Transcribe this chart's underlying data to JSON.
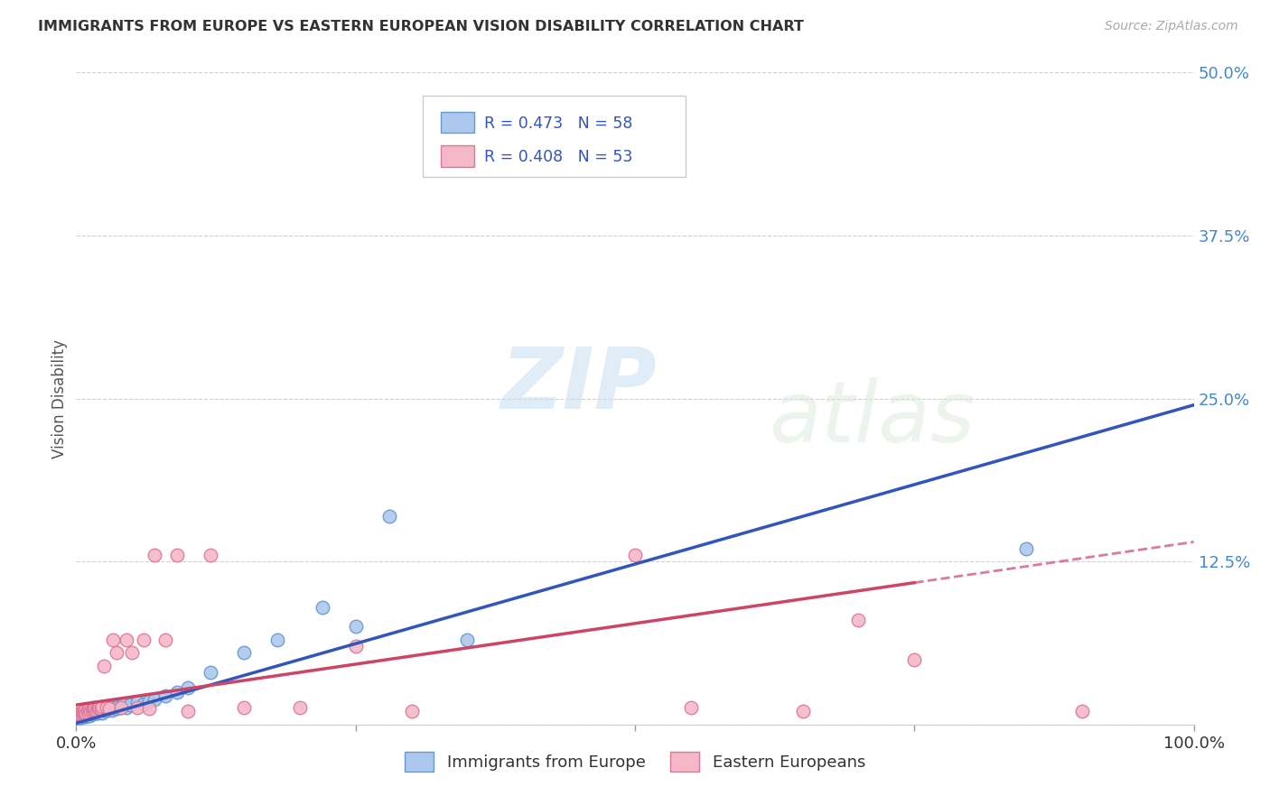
{
  "title": "IMMIGRANTS FROM EUROPE VS EASTERN EUROPEAN VISION DISABILITY CORRELATION CHART",
  "source": "Source: ZipAtlas.com",
  "ylabel": "Vision Disability",
  "xlim": [
    0,
    1.0
  ],
  "ylim": [
    0,
    0.5
  ],
  "ytick_vals": [
    0.0,
    0.125,
    0.25,
    0.375,
    0.5
  ],
  "ytick_labels": [
    "",
    "12.5%",
    "25.0%",
    "37.5%",
    "50.0%"
  ],
  "xtick_vals": [
    0.0,
    0.25,
    0.5,
    0.75,
    1.0
  ],
  "xtick_labels": [
    "0.0%",
    "",
    "",
    "",
    "100.0%"
  ],
  "series1_name": "Immigrants from Europe",
  "series1_R": "0.473",
  "series1_N": "58",
  "series1_color": "#adc8ee",
  "series1_edge": "#6699cc",
  "series2_name": "Eastern Europeans",
  "series2_R": "0.408",
  "series2_N": "53",
  "series2_color": "#f4b8c8",
  "series2_edge": "#dd7799",
  "trend1_color": "#3355bb",
  "trend2_color": "#cc4466",
  "watermark_zip": "ZIP",
  "watermark_atlas": "atlas",
  "background_color": "#ffffff",
  "legend_text_color": "#3355bb",
  "series1_x": [
    0.002,
    0.003,
    0.004,
    0.005,
    0.005,
    0.006,
    0.007,
    0.007,
    0.008,
    0.008,
    0.009,
    0.009,
    0.01,
    0.01,
    0.011,
    0.011,
    0.012,
    0.012,
    0.013,
    0.013,
    0.014,
    0.015,
    0.015,
    0.016,
    0.017,
    0.018,
    0.019,
    0.02,
    0.021,
    0.022,
    0.023,
    0.025,
    0.027,
    0.028,
    0.03,
    0.032,
    0.034,
    0.036,
    0.038,
    0.04,
    0.042,
    0.045,
    0.048,
    0.055,
    0.06,
    0.065,
    0.07,
    0.08,
    0.09,
    0.1,
    0.12,
    0.15,
    0.18,
    0.22,
    0.25,
    0.28,
    0.35,
    0.85
  ],
  "series1_y": [
    0.005,
    0.006,
    0.007,
    0.007,
    0.008,
    0.006,
    0.007,
    0.008,
    0.006,
    0.008,
    0.007,
    0.009,
    0.007,
    0.008,
    0.008,
    0.009,
    0.007,
    0.009,
    0.008,
    0.01,
    0.009,
    0.008,
    0.01,
    0.009,
    0.01,
    0.009,
    0.01,
    0.009,
    0.011,
    0.01,
    0.009,
    0.011,
    0.012,
    0.011,
    0.012,
    0.011,
    0.013,
    0.012,
    0.014,
    0.013,
    0.015,
    0.013,
    0.015,
    0.017,
    0.016,
    0.018,
    0.019,
    0.022,
    0.025,
    0.028,
    0.04,
    0.055,
    0.065,
    0.09,
    0.075,
    0.16,
    0.065,
    0.135
  ],
  "series2_x": [
    0.002,
    0.003,
    0.004,
    0.005,
    0.006,
    0.007,
    0.007,
    0.008,
    0.008,
    0.009,
    0.01,
    0.01,
    0.011,
    0.012,
    0.012,
    0.013,
    0.014,
    0.015,
    0.016,
    0.016,
    0.017,
    0.018,
    0.019,
    0.02,
    0.021,
    0.022,
    0.023,
    0.025,
    0.027,
    0.03,
    0.033,
    0.036,
    0.04,
    0.045,
    0.05,
    0.055,
    0.06,
    0.065,
    0.07,
    0.08,
    0.09,
    0.1,
    0.12,
    0.15,
    0.2,
    0.25,
    0.3,
    0.5,
    0.55,
    0.65,
    0.7,
    0.75,
    0.9
  ],
  "series2_y": [
    0.008,
    0.009,
    0.008,
    0.009,
    0.008,
    0.009,
    0.01,
    0.008,
    0.011,
    0.009,
    0.01,
    0.011,
    0.009,
    0.011,
    0.012,
    0.01,
    0.011,
    0.012,
    0.011,
    0.013,
    0.012,
    0.011,
    0.013,
    0.012,
    0.013,
    0.012,
    0.014,
    0.045,
    0.013,
    0.012,
    0.065,
    0.055,
    0.013,
    0.065,
    0.055,
    0.013,
    0.065,
    0.012,
    0.13,
    0.065,
    0.13,
    0.01,
    0.13,
    0.013,
    0.013,
    0.06,
    0.01,
    0.13,
    0.013,
    0.01,
    0.08,
    0.05,
    0.01
  ],
  "trend1_x0": 0.0,
  "trend1_y0": 0.001,
  "trend1_x1": 1.0,
  "trend1_y1": 0.245,
  "trend2_x0": 0.0,
  "trend2_y0": 0.015,
  "trend2_x1": 1.0,
  "trend2_y1": 0.14
}
